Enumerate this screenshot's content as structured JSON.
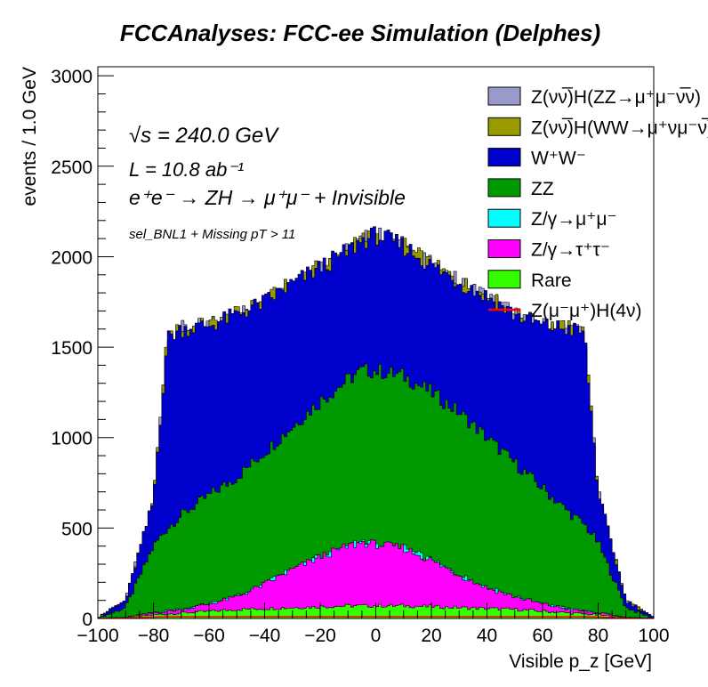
{
  "chart_data": {
    "type": "area",
    "title": "FCCAnalyses: FCC-ee Simulation (Delphes)",
    "xlabel": "Visible p_z [GeV]",
    "ylabel": "events / 1.0 GeV",
    "xlim": [
      -100,
      100
    ],
    "ylim": [
      0,
      3050
    ],
    "x_ticks": [
      -100,
      -80,
      -60,
      -40,
      -20,
      0,
      20,
      40,
      60,
      80,
      100
    ],
    "y_ticks": [
      0,
      500,
      1000,
      1500,
      2000,
      2500,
      3000
    ],
    "annotations": {
      "sqrt_s": "√s = 240.0 GeV",
      "lumi": "L = 10.8 ab⁻¹",
      "process": "e⁺e⁻ → ZH → μ⁺μ⁻ + Invisible",
      "selection": "sel_BNL1 + Missing pT > 11"
    },
    "legend_position": "top-right",
    "bin_width": 1.0,
    "series_note": "values are cumulative stacked tops (events per 1.0 GeV) sampled every 10 GeV",
    "x": [
      -100,
      -90,
      -80,
      -75,
      -70,
      -60,
      -50,
      -40,
      -30,
      -20,
      -10,
      -5,
      0,
      10,
      20,
      30,
      40,
      50,
      60,
      70,
      75,
      80,
      90,
      100
    ],
    "series": [
      {
        "name": "Rare",
        "color": "#33ff00",
        "values": [
          0,
          5,
          20,
          25,
          30,
          40,
          50,
          55,
          60,
          65,
          70,
          70,
          70,
          70,
          65,
          60,
          55,
          50,
          40,
          30,
          25,
          20,
          5,
          0
        ]
      },
      {
        "name": "Z/γ→τ⁺τ⁻",
        "color": "#ff00ff",
        "values": [
          0,
          6,
          30,
          40,
          50,
          80,
          120,
          190,
          270,
          340,
          400,
          420,
          410,
          390,
          320,
          240,
          170,
          120,
          80,
          50,
          40,
          30,
          6,
          0
        ]
      },
      {
        "name": "Z/γ→μ⁺μ⁻",
        "color": "#00ffff",
        "values": [
          0,
          6,
          30,
          40,
          50,
          80,
          120,
          190,
          270,
          340,
          400,
          420,
          410,
          390,
          320,
          240,
          170,
          120,
          80,
          50,
          40,
          30,
          6,
          0
        ]
      },
      {
        "name": "ZZ",
        "color": "#009900",
        "values": [
          0,
          60,
          400,
          500,
          570,
          680,
          780,
          920,
          1060,
          1200,
          1320,
          1370,
          1370,
          1340,
          1250,
          1140,
          1000,
          860,
          720,
          580,
          520,
          420,
          60,
          0
        ]
      },
      {
        "name": "W⁺W⁻",
        "color": "#0000cc",
        "values": [
          5,
          100,
          650,
          1550,
          1600,
          1620,
          1680,
          1750,
          1850,
          1940,
          2030,
          2090,
          2120,
          2060,
          1950,
          1860,
          1780,
          1680,
          1620,
          1600,
          1580,
          700,
          100,
          5
        ]
      },
      {
        "name": "Z(νν̅)H(WW→μ⁺νμ⁻ν̅)",
        "color": "#999900",
        "values": [
          5,
          100,
          650,
          1550,
          1600,
          1620,
          1680,
          1750,
          1850,
          1940,
          2030,
          2090,
          2120,
          2060,
          1950,
          1860,
          1780,
          1680,
          1620,
          1600,
          1580,
          700,
          100,
          5
        ]
      },
      {
        "name": "Z(νν̅)H(ZZ→μ⁺μ⁻ν̅ν)",
        "color": "#9999cc",
        "values": [
          5,
          100,
          650,
          1550,
          1600,
          1620,
          1680,
          1750,
          1850,
          1940,
          2030,
          2090,
          2120,
          2060,
          1950,
          1860,
          1780,
          1680,
          1620,
          1600,
          1580,
          700,
          100,
          5
        ]
      },
      {
        "name": "Z(μ⁻μ⁺)H(4ν)",
        "color": "#ff0000",
        "values": [
          0,
          2,
          8,
          10,
          10,
          10,
          10,
          10,
          10,
          10,
          10,
          10,
          10,
          10,
          10,
          10,
          10,
          10,
          10,
          10,
          10,
          8,
          2,
          0
        ]
      }
    ],
    "legend": [
      {
        "label": "Z(νν̅)H(ZZ→μ⁺μ⁻ν̅ν)",
        "color": "#9999cc",
        "kind": "box"
      },
      {
        "label": "Z(νν̅)H(WW→μ⁺νμ⁻ν̅)",
        "color": "#999900",
        "kind": "box"
      },
      {
        "label": "W⁺W⁻",
        "color": "#0000cc",
        "kind": "box"
      },
      {
        "label": "ZZ",
        "color": "#009900",
        "kind": "box"
      },
      {
        "label": "Z/γ→μ⁺μ⁻",
        "color": "#00ffff",
        "kind": "box"
      },
      {
        "label": "Z/γ→τ⁺τ⁻",
        "color": "#ff00ff",
        "kind": "box"
      },
      {
        "label": "Rare",
        "color": "#33ff00",
        "kind": "box"
      },
      {
        "label": "Z(μ⁻μ⁺)H(4ν)",
        "color": "#ff0000",
        "kind": "line"
      }
    ]
  }
}
